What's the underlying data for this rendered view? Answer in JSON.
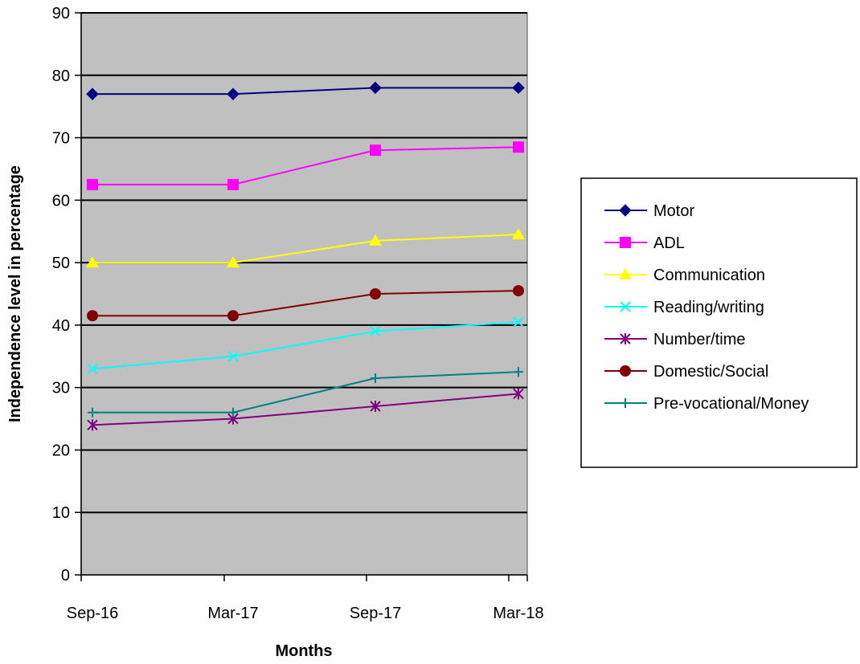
{
  "chart_data": {
    "type": "line",
    "title": "",
    "xlabel": "Months",
    "ylabel": "Independence level in percentage",
    "x": [
      "Sep-16",
      "Mar-17",
      "Sep-17",
      "Mar-18"
    ],
    "ylim": [
      0,
      90
    ],
    "yticks": [
      0,
      10,
      20,
      30,
      40,
      50,
      60,
      70,
      80,
      90
    ],
    "grid": "horizontal",
    "legend_position": "right",
    "plot_background": "#C0C0C0",
    "series": [
      {
        "name": "Motor",
        "values": [
          77,
          77,
          78,
          78
        ],
        "color": "#000080",
        "marker": "diamond"
      },
      {
        "name": "ADL",
        "values": [
          62.5,
          62.5,
          68,
          68.5
        ],
        "color": "#FF00FF",
        "marker": "square"
      },
      {
        "name": "Communication",
        "values": [
          50,
          50,
          53.5,
          54.5
        ],
        "color": "#FFFF00",
        "marker": "triangle"
      },
      {
        "name": "Reading/writing",
        "values": [
          33,
          35,
          39,
          40.5
        ],
        "color": "#00FFFF",
        "marker": "x"
      },
      {
        "name": "Number/time",
        "values": [
          24,
          25,
          27,
          29
        ],
        "color": "#800080",
        "marker": "asterisk"
      },
      {
        "name": "Domestic/Social",
        "values": [
          41.5,
          41.5,
          45,
          45.5
        ],
        "color": "#800000",
        "marker": "circle"
      },
      {
        "name": "Pre-vocational/Money",
        "values": [
          26,
          26,
          31.5,
          32.5
        ],
        "color": "#008080",
        "marker": "plus"
      }
    ]
  }
}
